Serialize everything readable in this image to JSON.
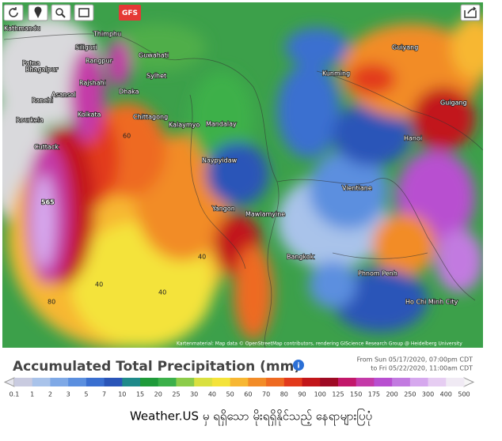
{
  "toolbar": {
    "model": "GFS"
  },
  "map": {
    "cities": [
      "Kathmandu",
      "Thimphu",
      "Siliguri",
      "Patna",
      "Rangpur",
      "Guwahati",
      "Bhagalpur",
      "Rajshahi",
      "Sylhet",
      "Asansol",
      "Dhaka",
      "Ranchi",
      "Kolkata",
      "Chittagong",
      "Kalaymyo",
      "Rourkela",
      "Cuttack",
      "Mandalay",
      "Naypyidaw",
      "Yangon",
      "Mawlamyine",
      "Bangkok",
      "Vientiane",
      "Hanoi",
      "Kunming",
      "Guiyang",
      "Guigang",
      "Phnom Penh",
      "Ho Chi Minh City"
    ],
    "peak": "565",
    "contours": [
      "60",
      "40",
      "80",
      "40",
      "40"
    ],
    "attribution": "Kartenmaterial: Map data © OpenStreetMap contributors, rendering GIScience Research Group @ Heidelberg University"
  },
  "legend": {
    "title": "Accumulated Total Precipitation (mm)",
    "from": "From Sun 05/17/2020, 07:00pm CDT",
    "to": "to Fri 05/22/2020, 11:00am CDT",
    "ticks": [
      0.1,
      1,
      2,
      3,
      5,
      7,
      10,
      15,
      20,
      25,
      30,
      40,
      50,
      60,
      70,
      80,
      90,
      100,
      125,
      150,
      175,
      200,
      250,
      300,
      400,
      500
    ],
    "colors": [
      "#c9cbe0",
      "#a9c3ea",
      "#7fa9e6",
      "#5b8fdf",
      "#3a6fd0",
      "#2a55b8",
      "#1f8a8a",
      "#1f9a3a",
      "#3cb04a",
      "#8ccc4a",
      "#d9e040",
      "#f4e33a",
      "#f7b733",
      "#f28c28",
      "#ee6a22",
      "#e23a1c",
      "#c2161a",
      "#9e0a24",
      "#c2186a",
      "#c43aa8",
      "#b84fd0",
      "#c27ae0",
      "#d6a8ee",
      "#e6cdf2",
      "#f0eaf4"
    ]
  },
  "caption": "Weather.US မှ ရရှိသော မိုးရရှိနိုင်သည့် နေရာများပြပုံ"
}
